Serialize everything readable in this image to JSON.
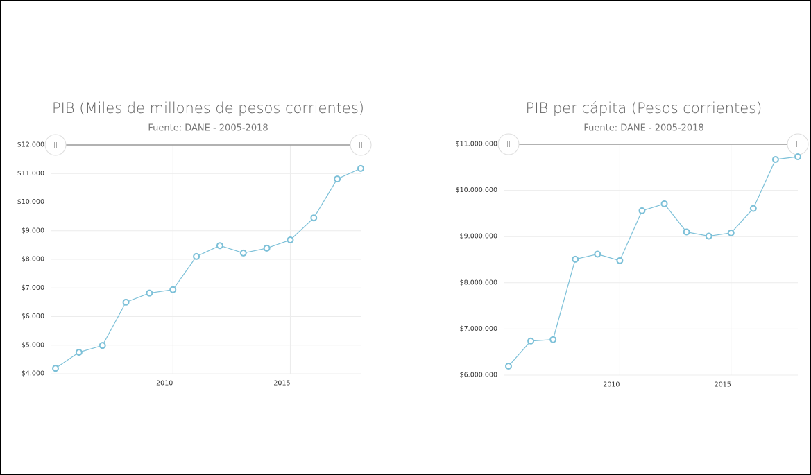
{
  "chart_data": [
    {
      "type": "line",
      "title": "PIB (Miles de millones de pesos corrientes)",
      "subtitle": "Fuente: DANE - 2005-2018",
      "x": [
        2005,
        2006,
        2007,
        2008,
        2009,
        2010,
        2011,
        2012,
        2013,
        2014,
        2015,
        2016,
        2017,
        2018
      ],
      "values": [
        4190,
        4750,
        4990,
        6500,
        6820,
        6940,
        8100,
        8480,
        8220,
        8390,
        8680,
        9450,
        10810,
        11180
      ],
      "color": "#7cc0d8",
      "xlim": [
        2005,
        2018
      ],
      "xticks": [
        2010,
        2015
      ],
      "ylim": [
        4000,
        12000
      ],
      "yticks": [
        {
          "value": 4000,
          "label": "$4.000"
        },
        {
          "value": 5000,
          "label": "$5.000"
        },
        {
          "value": 6000,
          "label": "$6.000"
        },
        {
          "value": 7000,
          "label": "$7.000"
        },
        {
          "value": 8000,
          "label": "$8.000"
        },
        {
          "value": 9000,
          "label": "$9.000"
        },
        {
          "value": 10000,
          "label": "$10.000"
        },
        {
          "value": 11000,
          "label": "$11.000"
        },
        {
          "value": 12000,
          "label": "$12.000"
        }
      ],
      "grid": true
    },
    {
      "type": "line",
      "title": "PIB per cápita (Pesos corrientes)",
      "subtitle": "Fuente: DANE - 2005-2018",
      "x": [
        2005,
        2006,
        2007,
        2008,
        2009,
        2010,
        2011,
        2012,
        2013,
        2014,
        2015,
        2016,
        2017,
        2018
      ],
      "values": [
        6195000,
        6740000,
        6770000,
        8510000,
        8620000,
        8480000,
        9560000,
        9710000,
        9100000,
        9010000,
        9080000,
        9610000,
        10670000,
        10730000
      ],
      "color": "#7cc0d8",
      "xlim": [
        2005,
        2018
      ],
      "xticks": [
        2010,
        2015
      ],
      "ylim": [
        6000000,
        11000000
      ],
      "yticks": [
        {
          "value": 6000000,
          "label": "$6.000.000"
        },
        {
          "value": 7000000,
          "label": "$7.000.000"
        },
        {
          "value": 8000000,
          "label": "$8.000.000"
        },
        {
          "value": 9000000,
          "label": "$9.000.000"
        },
        {
          "value": 10000000,
          "label": "$10.000.000"
        },
        {
          "value": 11000000,
          "label": "$11.000.000"
        }
      ],
      "grid": true
    }
  ]
}
